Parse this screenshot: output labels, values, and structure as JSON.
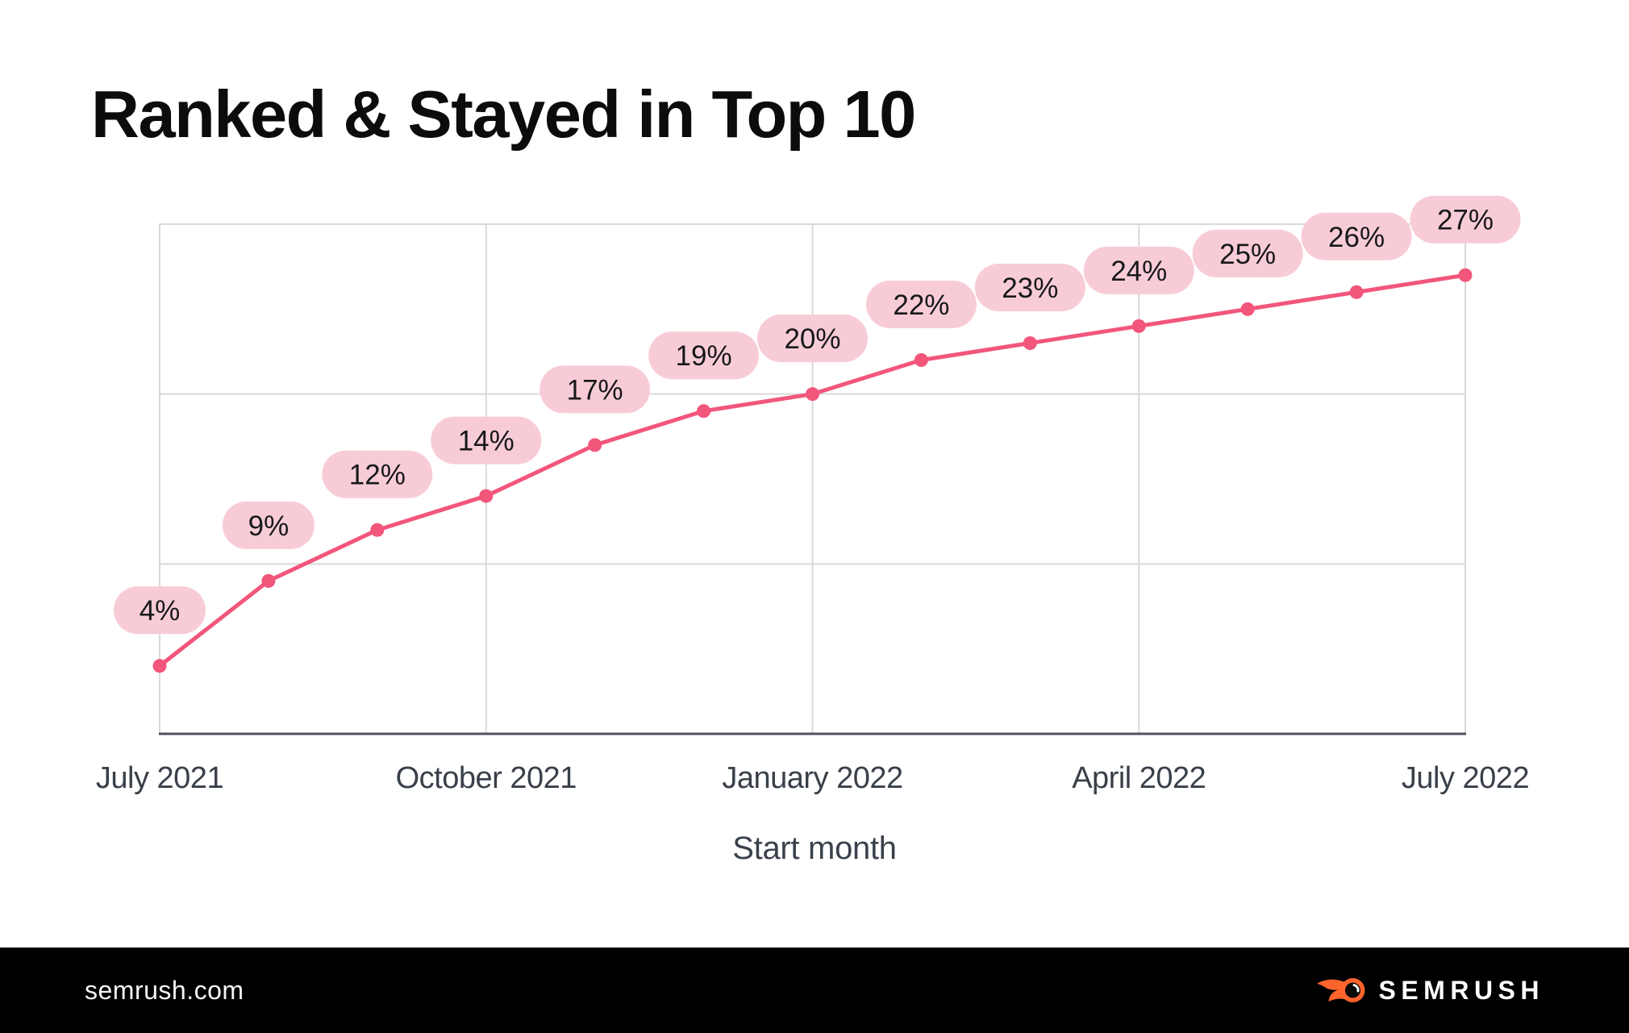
{
  "title": "Ranked & Stayed in Top 10",
  "chart_data": {
    "type": "line",
    "x": [
      "July 2021",
      "August 2021",
      "September 2021",
      "October 2021",
      "November 2021",
      "December 2021",
      "January 2022",
      "February 2022",
      "March 2022",
      "April 2022",
      "May 2022",
      "June 2022",
      "July 2022"
    ],
    "values": [
      4,
      9,
      12,
      14,
      17,
      19,
      20,
      22,
      23,
      24,
      25,
      26,
      27
    ],
    "point_labels": [
      "4%",
      "9%",
      "12%",
      "14%",
      "17%",
      "19%",
      "20%",
      "22%",
      "23%",
      "24%",
      "25%",
      "26%",
      "27%"
    ],
    "title": "Ranked & Stayed in Top 10",
    "xlabel": "Start month",
    "ylabel": "",
    "ylim": [
      0,
      30
    ],
    "y_gridlines": [
      10,
      20
    ],
    "x_tick_indices": [
      0,
      3,
      6,
      9,
      12
    ],
    "x_tick_labels": [
      "July 2021",
      "October 2021",
      "January 2022",
      "April 2022",
      "July 2022"
    ],
    "legend": "none",
    "grid": "on",
    "colors": {
      "line": "#f2567b",
      "dot": "#f2567b",
      "pill_bg": "#f8ccd7",
      "pill_text": "#17181a",
      "grid": "#d9d9d9",
      "axis": "#4d525c",
      "tick_text": "#394049"
    }
  },
  "footer": {
    "site": "semrush.com",
    "brand": "SEMRUSH",
    "brand_color": "#ff642d"
  }
}
